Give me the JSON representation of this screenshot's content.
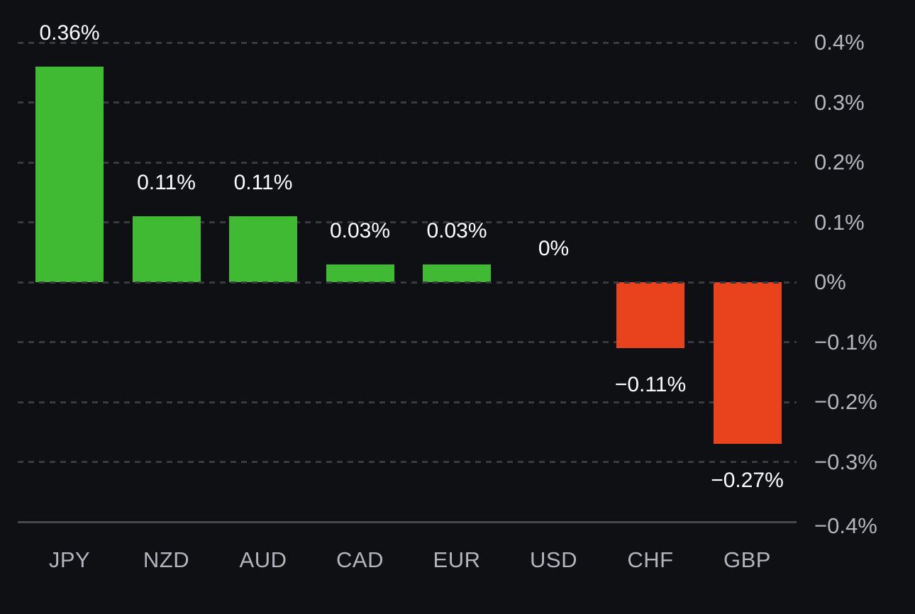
{
  "chart_data": {
    "type": "bar",
    "title": "",
    "xlabel": "",
    "ylabel": "",
    "categories": [
      "JPY",
      "NZD",
      "AUD",
      "CAD",
      "EUR",
      "USD",
      "CHF",
      "GBP"
    ],
    "values": [
      0.36,
      0.11,
      0.11,
      0.03,
      0.03,
      0,
      -0.11,
      -0.27
    ],
    "value_labels": [
      "0.36%",
      "0.11%",
      "0.11%",
      "0.03%",
      "0.03%",
      "0%",
      "−0.11%",
      "−0.27%"
    ],
    "y_axis": {
      "side": "right",
      "ylim": [
        -0.4,
        0.4
      ],
      "grid": "dashed",
      "ticks": [
        {
          "value": 0.4,
          "label": "0.4%"
        },
        {
          "value": 0.3,
          "label": "0.3%"
        },
        {
          "value": 0.2,
          "label": "0.2%"
        },
        {
          "value": 0.1,
          "label": "0.1%"
        },
        {
          "value": 0,
          "label": "0%"
        },
        {
          "value": -0.1,
          "label": "−0.1%"
        },
        {
          "value": -0.2,
          "label": "−0.2%"
        },
        {
          "value": -0.3,
          "label": "−0.3%"
        },
        {
          "value": -0.4,
          "label": "−0.4%"
        }
      ]
    },
    "legend": "none",
    "colors": {
      "positive_bar": "#41ba33",
      "negative_bar": "#e8431c",
      "background": "#0f1013",
      "grid": "#3a3b40",
      "axis_line": "#45484e",
      "tick_text": "#b2b5be",
      "category_text": "#b2b5be",
      "value_text": "#ffffff"
    }
  }
}
